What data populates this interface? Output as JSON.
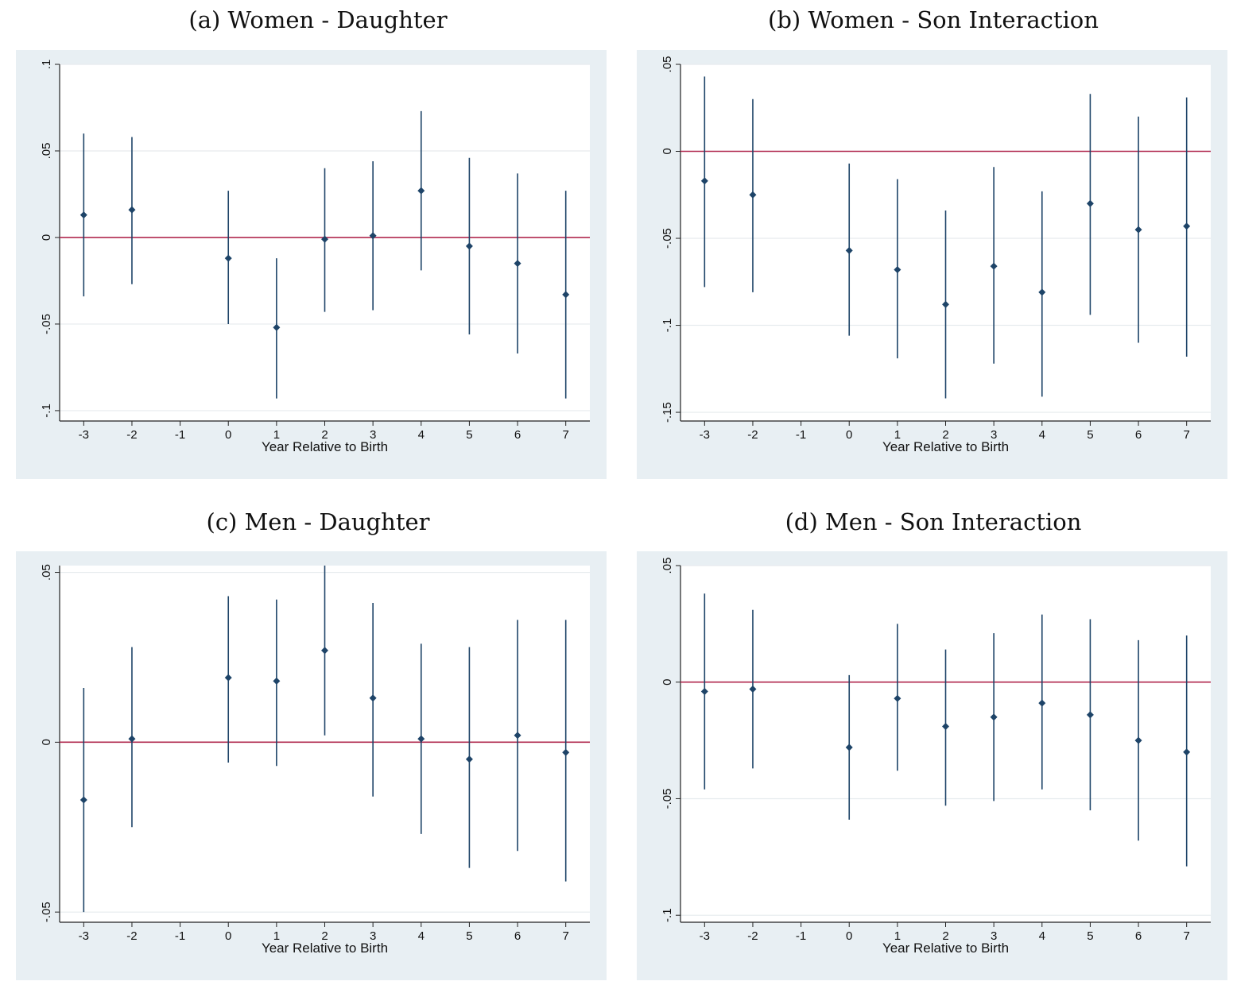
{
  "chart_data": [
    {
      "type": "scatter",
      "title": "(a) Women - Daughter",
      "xlabel": "Year Relative to Birth",
      "ylabel": "",
      "xticks": [
        -3,
        -2,
        -1,
        0,
        1,
        2,
        3,
        4,
        5,
        6,
        7
      ],
      "xtick_labels": [
        "-3",
        "-2",
        "-1",
        "0",
        "1",
        "2",
        "3",
        "4",
        "5",
        "6",
        "7"
      ],
      "yticks": [
        -0.1,
        -0.05,
        0,
        0.05,
        0.1
      ],
      "ytick_labels": [
        "-.1",
        "-.05",
        "0",
        ".05",
        ".1"
      ],
      "ylim": [
        -0.106,
        0.1
      ],
      "xlim": [
        -3.5,
        7.5
      ],
      "reference_line": 0,
      "colors": {
        "background": "#e8eff3",
        "plot": "#ffffff",
        "marker": "#1e4468",
        "ref": "#b0284e"
      },
      "x": [
        -3,
        -2,
        0,
        1,
        2,
        3,
        4,
        5,
        6,
        7
      ],
      "estimate": [
        0.013,
        0.016,
        -0.012,
        -0.052,
        -0.001,
        0.001,
        0.027,
        -0.005,
        -0.015,
        -0.033
      ],
      "ci_low": [
        -0.034,
        -0.027,
        -0.05,
        -0.093,
        -0.043,
        -0.042,
        -0.019,
        -0.056,
        -0.067,
        -0.093
      ],
      "ci_high": [
        0.06,
        0.058,
        0.027,
        -0.012,
        0.04,
        0.044,
        0.073,
        0.046,
        0.037,
        0.027
      ]
    },
    {
      "type": "scatter",
      "title": "(b) Women - Son Interaction",
      "xlabel": "Year Relative to Birth",
      "ylabel": "",
      "xticks": [
        -3,
        -2,
        -1,
        0,
        1,
        2,
        3,
        4,
        5,
        6,
        7
      ],
      "xtick_labels": [
        "-3",
        "-2",
        "-1",
        "0",
        "1",
        "2",
        "3",
        "4",
        "5",
        "6",
        "7"
      ],
      "yticks": [
        -0.15,
        -0.1,
        -0.05,
        0,
        0.05
      ],
      "ytick_labels": [
        "-.15",
        "-.1",
        "-.05",
        "0",
        ".05"
      ],
      "ylim": [
        -0.155,
        0.05
      ],
      "xlim": [
        -3.5,
        7.5
      ],
      "reference_line": 0,
      "colors": {
        "background": "#e8eff3",
        "plot": "#ffffff",
        "marker": "#1e4468",
        "ref": "#b0284e"
      },
      "x": [
        -3,
        -2,
        0,
        1,
        2,
        3,
        4,
        5,
        6,
        7
      ],
      "estimate": [
        -0.017,
        -0.025,
        -0.057,
        -0.068,
        -0.088,
        -0.066,
        -0.081,
        -0.03,
        -0.045,
        -0.043
      ],
      "ci_low": [
        -0.078,
        -0.081,
        -0.106,
        -0.119,
        -0.142,
        -0.122,
        -0.141,
        -0.094,
        -0.11,
        -0.118
      ],
      "ci_high": [
        0.043,
        0.03,
        -0.007,
        -0.016,
        -0.034,
        -0.009,
        -0.023,
        0.033,
        0.02,
        0.031
      ]
    },
    {
      "type": "scatter",
      "title": "(c) Men - Daughter",
      "xlabel": "Year Relative to Birth",
      "ylabel": "",
      "xticks": [
        -3,
        -2,
        -1,
        0,
        1,
        2,
        3,
        4,
        5,
        6,
        7
      ],
      "xtick_labels": [
        "-3",
        "-2",
        "-1",
        "0",
        "1",
        "2",
        "3",
        "4",
        "5",
        "6",
        "7"
      ],
      "yticks": [
        -0.05,
        0,
        0.05
      ],
      "ytick_labels": [
        "-.05",
        "0",
        ".05"
      ],
      "ylim": [
        -0.053,
        0.052
      ],
      "xlim": [
        -3.5,
        7.5
      ],
      "reference_line": 0,
      "colors": {
        "background": "#e8eff3",
        "plot": "#ffffff",
        "marker": "#1e4468",
        "ref": "#b0284e"
      },
      "x": [
        -3,
        -2,
        0,
        1,
        2,
        3,
        4,
        5,
        6,
        7
      ],
      "estimate": [
        -0.017,
        0.001,
        0.019,
        0.018,
        0.027,
        0.013,
        0.001,
        -0.005,
        0.002,
        -0.003
      ],
      "ci_low": [
        -0.05,
        -0.025,
        -0.006,
        -0.007,
        0.002,
        -0.016,
        -0.027,
        -0.037,
        -0.032,
        -0.041
      ],
      "ci_high": [
        0.016,
        0.028,
        0.043,
        0.042,
        0.052,
        0.041,
        0.029,
        0.028,
        0.036,
        0.036
      ]
    },
    {
      "type": "scatter",
      "title": "(d) Men - Son Interaction",
      "xlabel": "Year Relative to Birth",
      "ylabel": "",
      "xticks": [
        -3,
        -2,
        -1,
        0,
        1,
        2,
        3,
        4,
        5,
        6,
        7
      ],
      "xtick_labels": [
        "-3",
        "-2",
        "-1",
        "0",
        "1",
        "2",
        "3",
        "4",
        "5",
        "6",
        "7"
      ],
      "yticks": [
        -0.1,
        -0.05,
        0,
        0.05
      ],
      "ytick_labels": [
        "-.1",
        "-.05",
        "0",
        ".05"
      ],
      "ylim": [
        -0.103,
        0.05
      ],
      "xlim": [
        -3.5,
        7.5
      ],
      "reference_line": 0,
      "colors": {
        "background": "#e8eff3",
        "plot": "#ffffff",
        "marker": "#1e4468",
        "ref": "#b0284e"
      },
      "x": [
        -3,
        -2,
        0,
        1,
        2,
        3,
        4,
        5,
        6,
        7
      ],
      "estimate": [
        -0.004,
        -0.003,
        -0.028,
        -0.007,
        -0.019,
        -0.015,
        -0.009,
        -0.014,
        -0.025,
        -0.03
      ],
      "ci_low": [
        -0.046,
        -0.037,
        -0.059,
        -0.038,
        -0.053,
        -0.051,
        -0.046,
        -0.055,
        -0.068,
        -0.079
      ],
      "ci_high": [
        0.038,
        0.031,
        0.003,
        0.025,
        0.014,
        0.021,
        0.029,
        0.027,
        0.018,
        0.02
      ]
    }
  ]
}
